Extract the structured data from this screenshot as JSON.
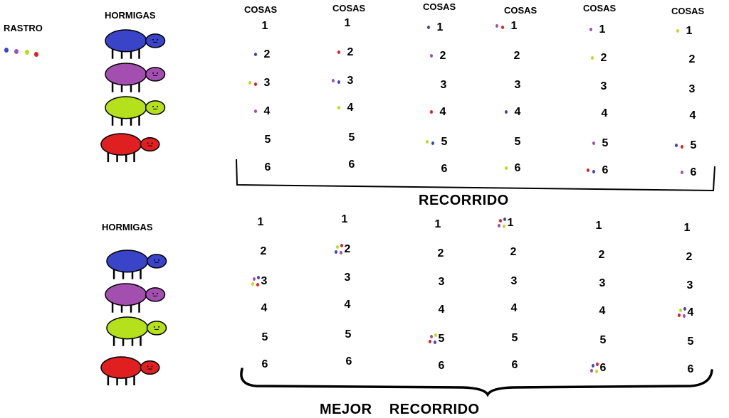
{
  "legend": {
    "label": "RASTRO",
    "dot_colors": [
      "#3a44c8",
      "#a24fb0",
      "#b5e01c",
      "#e02020"
    ]
  },
  "colors": {
    "blue": "#3a44c8",
    "purple": "#a24fb0",
    "green": "#b5e01c",
    "red": "#e02020"
  },
  "top": {
    "ants_label": "HORMIGAS",
    "column_header": "COSAS",
    "ant_colors": [
      "blue",
      "purple",
      "green",
      "red"
    ],
    "columns": [
      {
        "header": "COSAS",
        "numbers": [
          "1",
          "2",
          "3",
          "4",
          "5",
          "6"
        ],
        "trails": [
          [],
          [
            "blue"
          ],
          [
            "green",
            "red"
          ],
          [
            "purple"
          ],
          [],
          []
        ]
      },
      {
        "header": "COSAS",
        "numbers": [
          "1",
          "2",
          "3",
          "4",
          "5",
          "6"
        ],
        "trails": [
          [],
          [
            "red"
          ],
          [
            "purple",
            "blue"
          ],
          [
            "green"
          ],
          [],
          []
        ]
      },
      {
        "header": "COSAS",
        "numbers": [
          "1",
          "2",
          "3",
          "4",
          "5",
          "6"
        ],
        "trails": [
          [
            "blue"
          ],
          [
            "purple"
          ],
          [],
          [
            "red"
          ],
          [
            "green",
            "blue"
          ],
          []
        ]
      },
      {
        "header": "COSAS",
        "numbers": [
          "1",
          "2",
          "3",
          "4",
          "5",
          "6"
        ],
        "trails": [
          [
            "purple",
            "red"
          ],
          [],
          [],
          [
            "blue"
          ],
          [],
          [
            "green"
          ]
        ]
      },
      {
        "header": "COSAS",
        "numbers": [
          "1",
          "2",
          "3",
          "4",
          "5",
          "6"
        ],
        "trails": [
          [
            "purple"
          ],
          [
            "green"
          ],
          [],
          [],
          [
            "purple"
          ],
          [
            "red",
            "blue"
          ]
        ]
      },
      {
        "header": "COSAS",
        "numbers": [
          "1",
          "2",
          "3",
          "4",
          "5",
          "6"
        ],
        "trails": [
          [
            "green"
          ],
          [],
          [],
          [],
          [
            "blue",
            "red"
          ],
          [
            "purple"
          ]
        ]
      }
    ],
    "caption": "RECORRIDO"
  },
  "bottom": {
    "ants_label": "HORMIGAS",
    "ant_colors": [
      "blue",
      "purple",
      "green",
      "red"
    ],
    "columns": [
      {
        "numbers": [
          "1",
          "2",
          "3",
          "4",
          "5",
          "6"
        ],
        "trails": [
          [],
          [],
          [
            "purple",
            "blue",
            "green",
            "red"
          ],
          [],
          [],
          []
        ]
      },
      {
        "numbers": [
          "1",
          "2",
          "3",
          "4",
          "5",
          "6"
        ],
        "trails": [
          [],
          [
            "green",
            "red",
            "blue",
            "purple"
          ],
          [],
          [],
          [],
          []
        ]
      },
      {
        "numbers": [
          "1",
          "2",
          "3",
          "4",
          "5",
          "6"
        ],
        "trails": [
          [],
          [],
          [],
          [],
          [
            "purple",
            "green",
            "red",
            "blue"
          ],
          []
        ]
      },
      {
        "numbers": [
          "1",
          "2",
          "3",
          "4",
          "5",
          "6"
        ],
        "trails": [
          [
            "red",
            "blue",
            "purple",
            "green"
          ],
          [],
          [],
          [],
          [],
          []
        ]
      },
      {
        "numbers": [
          "1",
          "2",
          "3",
          "4",
          "5",
          "6"
        ],
        "trails": [
          [],
          [],
          [],
          [],
          [],
          [
            "blue",
            "red",
            "purple",
            "green"
          ]
        ]
      },
      {
        "numbers": [
          "1",
          "2",
          "3",
          "4",
          "5",
          "6"
        ],
        "trails": [
          [],
          [],
          [],
          [
            "green",
            "blue",
            "red",
            "purple"
          ],
          [],
          []
        ]
      }
    ],
    "caption": "MEJOR    RECORRIDO"
  }
}
